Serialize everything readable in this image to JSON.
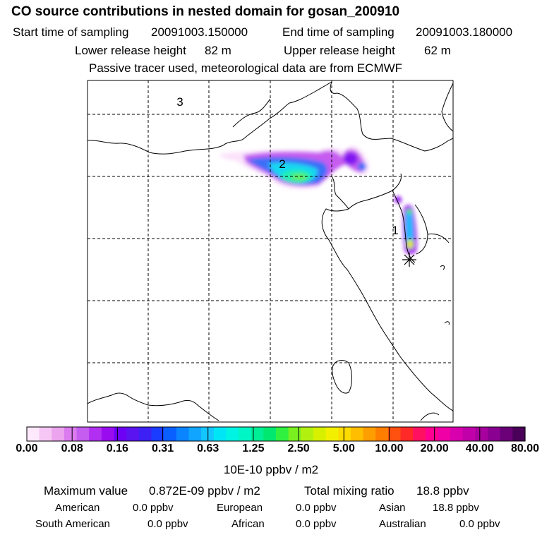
{
  "header": {
    "title": "CO  source contributions in nested domain for gosan_200910",
    "start_label": "Start time of sampling",
    "start_value": "20091003.150000",
    "end_label": "End time of sampling",
    "end_value": "20091003.180000",
    "lower_label": "Lower release height",
    "lower_value": "82 m",
    "upper_label": "Upper release height",
    "upper_value": "62 m",
    "note": "Passive tracer used, meteorological data are from ECMWF"
  },
  "map": {
    "region_labels": [
      "1",
      "2",
      "3"
    ]
  },
  "colorbar": {
    "labels": [
      "0.00",
      "0.08",
      "0.16",
      "0.31",
      "0.63",
      "1.25",
      "2.50",
      "5.00",
      "10.00",
      "20.00",
      "40.00",
      "80.00"
    ],
    "unit": "10E-10 ppbv / m2",
    "colors": [
      "#fde9fb",
      "#f6c7f4",
      "#eca4ef",
      "#dc7bf0",
      "#c45df0",
      "#b02ff0",
      "#9a0cf0",
      "#6d00f4",
      "#5a14f0",
      "#3c20f4",
      "#1a3cff",
      "#0a60ff",
      "#0a84ff",
      "#10a6ff",
      "#14c6ff",
      "#00e6f6",
      "#00f4e4",
      "#00f6c4",
      "#00ee96",
      "#00e870",
      "#30f040",
      "#7af020",
      "#b2f010",
      "#d6f000",
      "#f2f000",
      "#ffdc00",
      "#ffbe00",
      "#ff9e00",
      "#ff7e00",
      "#ff5010",
      "#ff2a28",
      "#ff1060",
      "#ff0090",
      "#ee00a6",
      "#d800ae",
      "#c000a8",
      "#a8009e",
      "#8a0090",
      "#6a0078",
      "#4a0058"
    ]
  },
  "footer": {
    "max_label": "Maximum value",
    "max_value": "0.872E-09 ppbv / m2",
    "total_label": "Total mixing ratio",
    "total_value": "18.8 ppbv",
    "regions": [
      {
        "name": "American",
        "value": "0.0 ppbv"
      },
      {
        "name": "European",
        "value": "0.0 ppbv"
      },
      {
        "name": "Asian",
        "value": "18.8 ppbv"
      },
      {
        "name": "South American",
        "value": "0.0 ppbv"
      },
      {
        "name": "African",
        "value": "0.0 ppbv"
      },
      {
        "name": "Australian",
        "value": "0.0 ppbv"
      }
    ]
  }
}
